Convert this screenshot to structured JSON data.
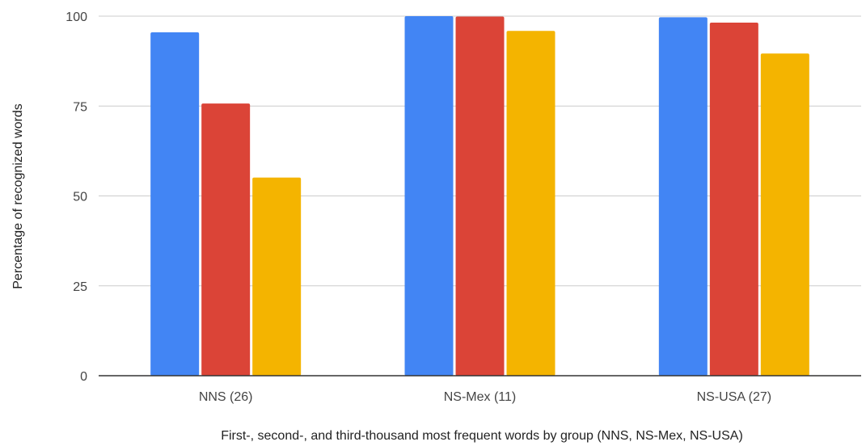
{
  "chart_data": {
    "type": "bar",
    "title": "",
    "xlabel": "First-, second-, and third-thousand most frequent words by group (NNS, NS-Mex, NS-USA)",
    "ylabel": "Percentage of recognized words",
    "categories": [
      "NNS (26)",
      "NS-Mex (11)",
      "NS-USA (27)"
    ],
    "series": [
      {
        "values": [
          95.5,
          100,
          99.7
        ],
        "color": "#4285F4"
      },
      {
        "values": [
          75.7,
          99.9,
          98.2
        ],
        "color": "#DB4437"
      },
      {
        "values": [
          55.1,
          95.9,
          89.6
        ],
        "color": "#F4B400"
      }
    ],
    "ylim": [
      0,
      100
    ],
    "yticks": [
      "0",
      "25",
      "50",
      "75",
      "100"
    ],
    "grid": true,
    "legend": "none"
  }
}
